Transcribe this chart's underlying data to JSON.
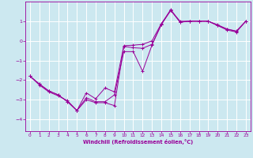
{
  "background_color": "#cce8f0",
  "grid_color": "#ffffff",
  "line_color": "#990099",
  "xlabel": "Windchill (Refroidissement éolien,°C)",
  "xlim": [
    -0.5,
    23.5
  ],
  "ylim": [
    -4.6,
    2.0
  ],
  "xticks": [
    0,
    1,
    2,
    3,
    4,
    5,
    6,
    7,
    8,
    9,
    10,
    11,
    12,
    13,
    14,
    15,
    16,
    17,
    18,
    19,
    20,
    21,
    22,
    23
  ],
  "yticks": [
    -4,
    -3,
    -2,
    -1,
    0,
    1
  ],
  "series1": [
    [
      0,
      -1.8
    ],
    [
      1,
      -2.2
    ],
    [
      2,
      -2.55
    ],
    [
      3,
      -2.75
    ],
    [
      4,
      -3.1
    ],
    [
      5,
      -3.55
    ],
    [
      6,
      -3.0
    ],
    [
      7,
      -3.15
    ],
    [
      8,
      -3.15
    ],
    [
      9,
      -3.3
    ],
    [
      10,
      -0.28
    ],
    [
      11,
      -0.35
    ],
    [
      12,
      -0.38
    ],
    [
      13,
      -0.18
    ],
    [
      14,
      0.82
    ],
    [
      15,
      1.55
    ],
    [
      16,
      1.0
    ],
    [
      17,
      1.0
    ],
    [
      18,
      1.0
    ],
    [
      19,
      1.0
    ],
    [
      20,
      0.82
    ],
    [
      21,
      0.6
    ],
    [
      22,
      0.5
    ],
    [
      23,
      1.0
    ]
  ],
  "series2": [
    [
      0,
      -1.8
    ],
    [
      1,
      -2.2
    ],
    [
      2,
      -2.55
    ],
    [
      3,
      -2.75
    ],
    [
      4,
      -3.1
    ],
    [
      5,
      -3.55
    ],
    [
      6,
      -2.9
    ],
    [
      7,
      -3.1
    ],
    [
      8,
      -3.1
    ],
    [
      9,
      -2.75
    ],
    [
      10,
      -0.55
    ],
    [
      11,
      -0.55
    ],
    [
      12,
      -1.55
    ],
    [
      13,
      -0.22
    ],
    [
      14,
      0.85
    ],
    [
      15,
      1.6
    ],
    [
      16,
      0.95
    ],
    [
      17,
      1.0
    ],
    [
      18,
      1.0
    ],
    [
      19,
      1.0
    ],
    [
      20,
      0.78
    ],
    [
      21,
      0.55
    ],
    [
      22,
      0.45
    ],
    [
      23,
      1.0
    ]
  ],
  "series3": [
    [
      0,
      -1.8
    ],
    [
      1,
      -2.25
    ],
    [
      2,
      -2.6
    ],
    [
      3,
      -2.8
    ],
    [
      4,
      -3.05
    ],
    [
      5,
      -3.55
    ],
    [
      6,
      -2.65
    ],
    [
      7,
      -2.95
    ],
    [
      8,
      -2.4
    ],
    [
      9,
      -2.6
    ],
    [
      10,
      -0.25
    ],
    [
      11,
      -0.22
    ],
    [
      12,
      -0.18
    ],
    [
      13,
      0.0
    ],
    [
      14,
      0.88
    ],
    [
      15,
      1.55
    ],
    [
      16,
      0.95
    ],
    [
      17,
      1.0
    ],
    [
      18,
      1.0
    ],
    [
      19,
      1.0
    ],
    [
      20,
      0.78
    ],
    [
      21,
      0.6
    ],
    [
      22,
      0.48
    ],
    [
      23,
      1.0
    ]
  ]
}
